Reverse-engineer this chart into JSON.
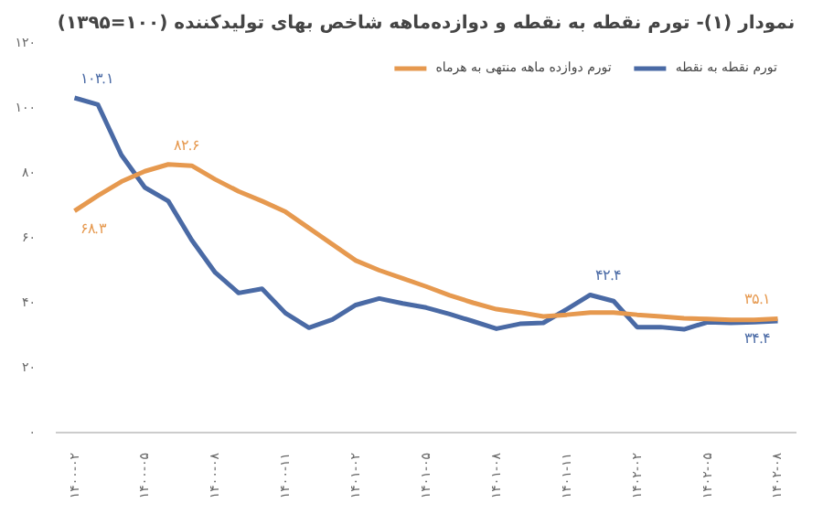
{
  "chart_data": {
    "type": "line",
    "title": "نمودار (۱)- تورم نقطه به نقطه و دوازده‌ماهه شاخص بهای تولیدکننده (۱۰۰=۱۳۹۵)",
    "categories": [
      "۱۴۰۰-۰۲",
      null,
      null,
      "۱۴۰۰-۰۵",
      null,
      null,
      "۱۴۰۰-۰۸",
      null,
      null,
      "۱۴۰۰-۱۱",
      null,
      null,
      "۱۴۰۱-۰۲",
      null,
      null,
      "۱۴۰۱-۰۵",
      null,
      null,
      "۱۴۰۱-۰۸",
      null,
      null,
      "۱۴۰۱-۱۱",
      null,
      null,
      "۱۴۰۲-۰۲",
      null,
      null,
      "۱۴۰۲-۰۵",
      null,
      null,
      "۱۴۰۲-۰۸"
    ],
    "series": [
      {
        "name": "تورم نقطه به نقطه",
        "color": "#4a6aa5",
        "values": [
          103.1,
          101,
          85.5,
          75.5,
          71.3,
          59.3,
          49.3,
          43,
          44.3,
          36.8,
          32.3,
          34.8,
          39.3,
          41.3,
          39.8,
          38.5,
          36.5,
          34.3,
          32,
          33.5,
          33.8,
          38,
          42.4,
          40.5,
          32.5,
          32.5,
          31.8,
          34,
          33.8,
          34,
          34.4
        ],
        "value_labels": [
          "۱۰۳.۱",
          null,
          null,
          null,
          null,
          null,
          null,
          null,
          null,
          null,
          null,
          null,
          null,
          null,
          null,
          null,
          null,
          null,
          null,
          null,
          null,
          null,
          "۴۲.۴",
          null,
          null,
          null,
          null,
          null,
          null,
          null,
          "۳۴.۴"
        ]
      },
      {
        "name": "تورم دوازده ماهه منتهی به هرماه",
        "color": "#e6994f",
        "values": [
          68.3,
          73,
          77.3,
          80.5,
          82.6,
          82.2,
          78,
          74.3,
          71.3,
          68,
          63,
          58,
          53,
          50,
          47.5,
          45,
          42.3,
          40,
          38,
          37,
          35.8,
          36.3,
          37,
          37,
          36.3,
          35.8,
          35.2,
          35,
          34.7,
          34.7,
          35.1
        ],
        "value_labels": [
          "۶۸.۳",
          null,
          null,
          null,
          "۸۲.۶",
          null,
          null,
          null,
          null,
          null,
          null,
          null,
          null,
          null,
          null,
          null,
          null,
          null,
          null,
          null,
          null,
          null,
          null,
          null,
          null,
          null,
          null,
          null,
          null,
          null,
          "۳۵.۱"
        ]
      }
    ],
    "ylim": [
      0,
      120
    ],
    "yticks": [
      {
        "value": 0,
        "label": "۰"
      },
      {
        "value": 20,
        "label": "۲۰"
      },
      {
        "value": 40,
        "label": "۴۰"
      },
      {
        "value": 60,
        "label": "۶۰"
      },
      {
        "value": 80,
        "label": "۸۰"
      },
      {
        "value": 100,
        "label": "۱۰۰"
      },
      {
        "value": 120,
        "label": "۱۲۰"
      }
    ],
    "grid": false,
    "legend": "top right",
    "marker": "none",
    "line_style": "solid"
  }
}
